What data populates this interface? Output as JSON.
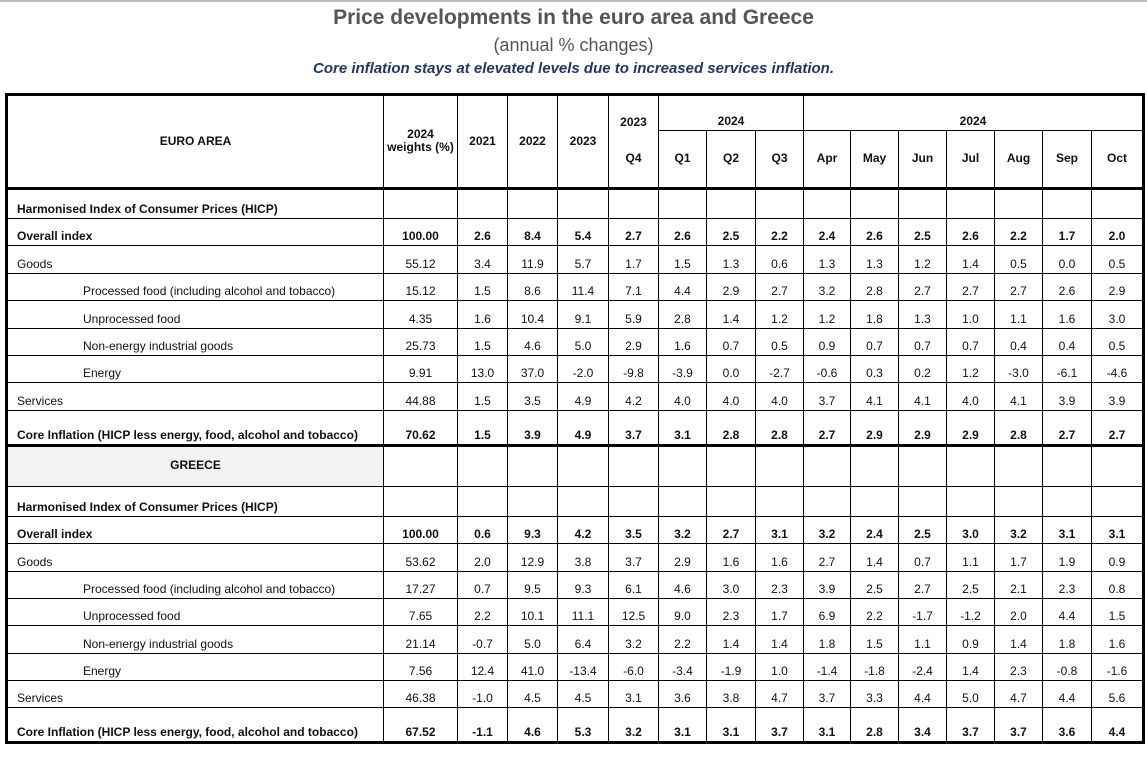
{
  "title": "Price developments in the euro area and Greece",
  "subtitle": "(annual % changes)",
  "headline": "Core inflation stays at elevated levels due to increased services inflation.",
  "header": {
    "weights": "2024 weights (%)",
    "years": [
      "2021",
      "2022",
      "2023"
    ],
    "group_2023": "2023",
    "group_2024q": "2024",
    "group_2024m": "2024",
    "quarters": [
      "Q4",
      "Q1",
      "Q2",
      "Q3"
    ],
    "months": [
      "Apr",
      "May",
      "Jun",
      "Jul",
      "Aug",
      "Sep",
      "Oct"
    ]
  },
  "sections": [
    {
      "name": "EURO AREA",
      "hicp_label": "Harmonised Index of Consumer Prices (HICP)",
      "rows": [
        {
          "label": "Overall index",
          "bold": true,
          "indent": false,
          "values": [
            "100.00",
            "2.6",
            "8.4",
            "5.4",
            "2.7",
            "2.6",
            "2.5",
            "2.2",
            "2.4",
            "2.6",
            "2.5",
            "2.6",
            "2.2",
            "1.7",
            "2.0"
          ]
        },
        {
          "label": "Goods",
          "bold": false,
          "indent": false,
          "values": [
            "55.12",
            "3.4",
            "11.9",
            "5.7",
            "1.7",
            "1.5",
            "1.3",
            "0.6",
            "1.3",
            "1.3",
            "1.2",
            "1.4",
            "0.5",
            "0.0",
            "0.5"
          ]
        },
        {
          "label": "Processed food (including alcohol and tobacco)",
          "bold": false,
          "indent": true,
          "values": [
            "15.12",
            "1.5",
            "8.6",
            "11.4",
            "7.1",
            "4.4",
            "2.9",
            "2.7",
            "3.2",
            "2.8",
            "2.7",
            "2.7",
            "2.7",
            "2.6",
            "2.9"
          ]
        },
        {
          "label": "Unprocessed food",
          "bold": false,
          "indent": true,
          "values": [
            "4.35",
            "1.6",
            "10.4",
            "9.1",
            "5.9",
            "2.8",
            "1.4",
            "1.2",
            "1.2",
            "1.8",
            "1.3",
            "1.0",
            "1.1",
            "1.6",
            "3.0"
          ]
        },
        {
          "label": "Non-energy industrial goods",
          "bold": false,
          "indent": true,
          "values": [
            "25.73",
            "1.5",
            "4.6",
            "5.0",
            "2.9",
            "1.6",
            "0.7",
            "0.5",
            "0.9",
            "0.7",
            "0.7",
            "0.7",
            "0.4",
            "0.4",
            "0.5"
          ]
        },
        {
          "label": "Energy",
          "bold": false,
          "indent": true,
          "values": [
            "9.91",
            "13.0",
            "37.0",
            "-2.0",
            "-9.8",
            "-3.9",
            "0.0",
            "-2.7",
            "-0.6",
            "0.3",
            "0.2",
            "1.2",
            "-3.0",
            "-6.1",
            "-4.6"
          ]
        },
        {
          "label": "Services",
          "bold": false,
          "indent": false,
          "values": [
            "44.88",
            "1.5",
            "3.5",
            "4.9",
            "4.2",
            "4.0",
            "4.0",
            "4.0",
            "3.7",
            "4.1",
            "4.1",
            "4.0",
            "4.1",
            "3.9",
            "3.9"
          ]
        },
        {
          "label": "Core Inflation (HICP less energy, food, alcohol and tobacco)",
          "bold": true,
          "indent": false,
          "core": true,
          "values": [
            "70.62",
            "1.5",
            "3.9",
            "4.9",
            "3.7",
            "3.1",
            "2.8",
            "2.8",
            "2.7",
            "2.9",
            "2.9",
            "2.9",
            "2.8",
            "2.7",
            "2.7"
          ]
        }
      ]
    },
    {
      "name": "GREECE",
      "hicp_label": "Harmonised Index of Consumer Prices (HICP)",
      "rows": [
        {
          "label": "Overall index",
          "bold": true,
          "indent": false,
          "values": [
            "100.00",
            "0.6",
            "9.3",
            "4.2",
            "3.5",
            "3.2",
            "2.7",
            "3.1",
            "3.2",
            "2.4",
            "2.5",
            "3.0",
            "3.2",
            "3.1",
            "3.1"
          ]
        },
        {
          "label": "Goods",
          "bold": false,
          "indent": false,
          "values": [
            "53.62",
            "2.0",
            "12.9",
            "3.8",
            "3.7",
            "2.9",
            "1.6",
            "1.6",
            "2.7",
            "1.4",
            "0.7",
            "1.1",
            "1.7",
            "1.9",
            "0.9"
          ]
        },
        {
          "label": "Processed food (including alcohol and tobacco)",
          "bold": false,
          "indent": true,
          "values": [
            "17.27",
            "0.7",
            "9.5",
            "9.3",
            "6.1",
            "4.6",
            "3.0",
            "2.3",
            "3.9",
            "2.5",
            "2.7",
            "2.5",
            "2.1",
            "2.3",
            "0.8"
          ]
        },
        {
          "label": "Unprocessed food",
          "bold": false,
          "indent": true,
          "values": [
            "7.65",
            "2.2",
            "10.1",
            "11.1",
            "12.5",
            "9.0",
            "2.3",
            "1.7",
            "6.9",
            "2.2",
            "-1.7",
            "-1.2",
            "2.0",
            "4.4",
            "1.5"
          ]
        },
        {
          "label": "Non-energy industrial goods",
          "bold": false,
          "indent": true,
          "values": [
            "21.14",
            "-0.7",
            "5.0",
            "6.4",
            "3.2",
            "2.2",
            "1.4",
            "1.4",
            "1.8",
            "1.5",
            "1.1",
            "0.9",
            "1.4",
            "1.8",
            "1.6"
          ]
        },
        {
          "label": "Energy",
          "bold": false,
          "indent": true,
          "values": [
            "7.56",
            "12.4",
            "41.0",
            "-13.4",
            "-6.0",
            "-3.4",
            "-1.9",
            "1.0",
            "-1.4",
            "-1.8",
            "-2.4",
            "1.4",
            "2.3",
            "-0.8",
            "-1.6"
          ]
        },
        {
          "label": "Services",
          "bold": false,
          "indent": false,
          "values": [
            "46.38",
            "-1.0",
            "4.5",
            "4.5",
            "3.1",
            "3.6",
            "3.8",
            "4.7",
            "3.7",
            "3.3",
            "4.4",
            "5.0",
            "4.7",
            "4.4",
            "5.6"
          ]
        },
        {
          "label": "Core Inflation (HICP less energy, food, alcohol and tobacco)",
          "bold": true,
          "indent": false,
          "core": true,
          "values": [
            "67.52",
            "-1.1",
            "4.6",
            "5.3",
            "3.2",
            "3.1",
            "3.1",
            "3.7",
            "3.1",
            "2.8",
            "3.4",
            "3.7",
            "3.7",
            "3.6",
            "4.4"
          ]
        }
      ]
    }
  ]
}
